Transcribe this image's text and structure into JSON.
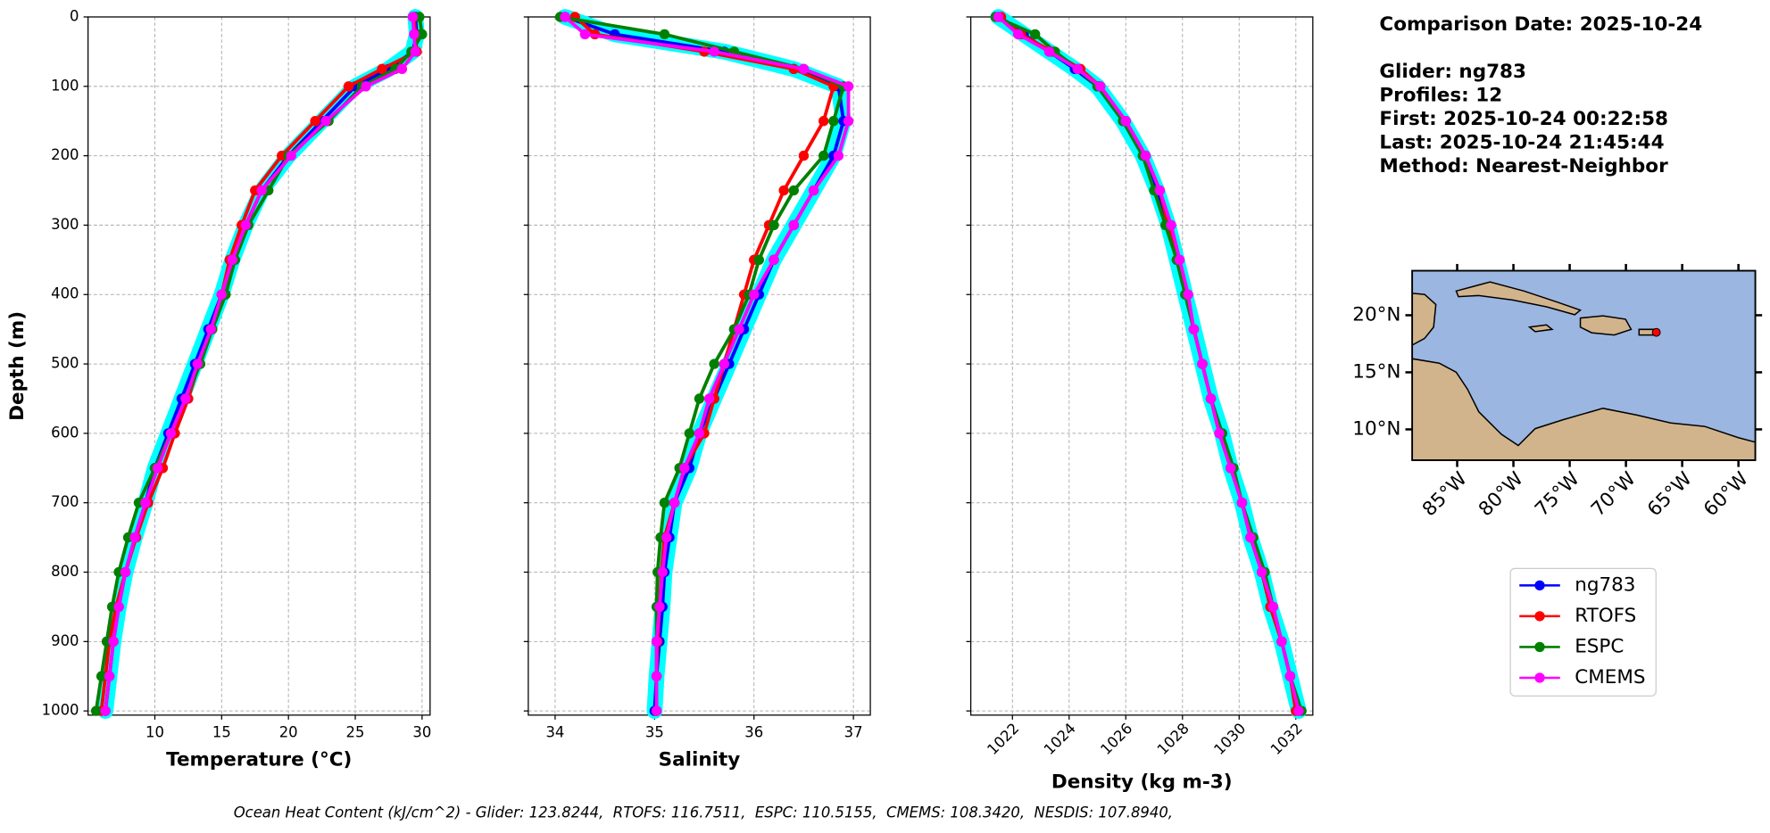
{
  "chart_data": [
    {
      "type": "line",
      "xlabel": "Temperature (°C)",
      "ylabel": "Depth (m)",
      "y_inverted": true,
      "ytick_labels": true,
      "grid": true,
      "xlim": [
        5.0,
        30.6
      ],
      "xticks": [
        10,
        15,
        20,
        25,
        30
      ],
      "ylim": [
        0,
        1006
      ],
      "yticks": [
        0,
        100,
        200,
        300,
        400,
        500,
        600,
        700,
        800,
        900,
        1000
      ],
      "depth": [
        0,
        25,
        50,
        75,
        100,
        150,
        200,
        250,
        300,
        350,
        400,
        450,
        500,
        550,
        600,
        650,
        700,
        750,
        800,
        850,
        900,
        950,
        1000
      ],
      "series": [
        {
          "name": "ng783",
          "color": "#0000ff",
          "halo_color": "#00ffff",
          "values": [
            29.5,
            29.6,
            29.3,
            27.5,
            25.0,
            22.5,
            20.0,
            18.0,
            16.8,
            15.8,
            15.0,
            14.0,
            13.0,
            12.0,
            11.0,
            10.0,
            9.3,
            8.5,
            7.8,
            7.3,
            6.9,
            6.6,
            6.3
          ]
        },
        {
          "name": "RTOFS",
          "color": "#ff0000",
          "values": [
            29.4,
            29.5,
            29.6,
            27.0,
            24.5,
            22.0,
            19.5,
            17.5,
            16.5,
            15.6,
            15.0,
            14.2,
            13.3,
            12.5,
            11.5,
            10.6,
            9.5,
            8.6,
            7.8,
            7.1,
            6.6,
            6.3,
            6.0
          ]
        },
        {
          "name": "ESPC",
          "color": "#008000",
          "values": [
            29.8,
            30.0,
            29.2,
            28.0,
            25.5,
            23.0,
            20.0,
            18.5,
            17.0,
            16.0,
            15.3,
            14.3,
            13.4,
            12.3,
            11.2,
            10.0,
            8.8,
            8.0,
            7.3,
            6.8,
            6.4,
            6.0,
            5.6
          ]
        },
        {
          "name": "CMEMS",
          "color": "#ff00ff",
          "values": [
            29.3,
            29.4,
            29.5,
            28.5,
            25.8,
            22.8,
            20.2,
            18.0,
            16.8,
            15.8,
            15.0,
            14.2,
            13.2,
            12.3,
            11.2,
            10.2,
            9.3,
            8.5,
            7.8,
            7.3,
            6.9,
            6.6,
            6.3
          ]
        }
      ]
    },
    {
      "type": "line",
      "xlabel": "Salinity",
      "y_inverted": true,
      "ytick_labels": false,
      "grid": true,
      "xlim": [
        33.73,
        37.17
      ],
      "xticks": [
        34,
        35,
        36,
        37
      ],
      "ylim": [
        0,
        1006
      ],
      "yticks": [
        0,
        100,
        200,
        300,
        400,
        500,
        600,
        700,
        800,
        900,
        1000
      ],
      "depth": [
        0,
        25,
        50,
        75,
        100,
        150,
        200,
        250,
        300,
        350,
        400,
        450,
        500,
        550,
        600,
        650,
        700,
        750,
        800,
        850,
        900,
        950,
        1000
      ],
      "series": [
        {
          "name": "ng783",
          "color": "#0000ff",
          "halo_color": "#00ffff",
          "values": [
            34.1,
            34.6,
            35.7,
            36.4,
            36.85,
            36.9,
            36.8,
            36.6,
            36.4,
            36.2,
            36.05,
            35.9,
            35.75,
            35.6,
            35.45,
            35.35,
            35.2,
            35.15,
            35.1,
            35.08,
            35.05,
            35.02,
            35.0
          ]
        },
        {
          "name": "RTOFS",
          "color": "#ff0000",
          "values": [
            34.2,
            34.4,
            35.5,
            36.4,
            36.8,
            36.7,
            36.5,
            36.3,
            36.15,
            36.0,
            35.9,
            35.8,
            35.7,
            35.6,
            35.5,
            35.3,
            35.2,
            35.1,
            35.07,
            35.05,
            35.03,
            35.02,
            35.02
          ]
        },
        {
          "name": "ESPC",
          "color": "#008000",
          "values": [
            34.05,
            35.1,
            35.8,
            36.5,
            36.9,
            36.8,
            36.7,
            36.4,
            36.2,
            36.05,
            35.95,
            35.8,
            35.6,
            35.45,
            35.35,
            35.25,
            35.1,
            35.06,
            35.03,
            35.02,
            35.02,
            35.02,
            35.02
          ]
        },
        {
          "name": "CMEMS",
          "color": "#ff00ff",
          "values": [
            34.1,
            34.3,
            35.6,
            36.5,
            36.95,
            36.95,
            36.85,
            36.6,
            36.4,
            36.2,
            36.0,
            35.85,
            35.7,
            35.55,
            35.45,
            35.3,
            35.2,
            35.12,
            35.08,
            35.05,
            35.02,
            35.02,
            35.02
          ]
        }
      ]
    },
    {
      "type": "line",
      "xlabel": "Density (kg m-3)",
      "y_inverted": true,
      "ytick_labels": false,
      "xtick_rotation": 45,
      "grid": true,
      "xlim": [
        1020.53,
        1032.6
      ],
      "xticks": [
        1022,
        1024,
        1026,
        1028,
        1030,
        1032
      ],
      "ylim": [
        0,
        1006
      ],
      "yticks": [
        0,
        100,
        200,
        300,
        400,
        500,
        600,
        700,
        800,
        900,
        1000
      ],
      "depth": [
        0,
        25,
        50,
        75,
        100,
        150,
        200,
        250,
        300,
        350,
        400,
        450,
        500,
        550,
        600,
        650,
        700,
        750,
        800,
        850,
        900,
        950,
        1000
      ],
      "series": [
        {
          "name": "ng783",
          "color": "#0000ff",
          "halo_color": "#00ffff",
          "values": [
            1021.5,
            1022.4,
            1023.3,
            1024.2,
            1025.0,
            1025.9,
            1026.6,
            1027.1,
            1027.5,
            1027.8,
            1028.1,
            1028.4,
            1028.7,
            1029.0,
            1029.4,
            1029.7,
            1030.1,
            1030.4,
            1030.8,
            1031.1,
            1031.5,
            1031.8,
            1032.1
          ]
        },
        {
          "name": "RTOFS",
          "color": "#ff0000",
          "values": [
            1021.6,
            1022.3,
            1023.4,
            1024.4,
            1025.1,
            1026.0,
            1026.7,
            1027.2,
            1027.5,
            1027.8,
            1028.1,
            1028.4,
            1028.7,
            1029.0,
            1029.3,
            1029.7,
            1030.1,
            1030.4,
            1030.8,
            1031.1,
            1031.5,
            1031.8,
            1032.0
          ]
        },
        {
          "name": "ESPC",
          "color": "#008000",
          "values": [
            1021.4,
            1022.8,
            1023.5,
            1024.3,
            1025.0,
            1025.9,
            1026.6,
            1027.0,
            1027.4,
            1027.8,
            1028.1,
            1028.4,
            1028.7,
            1029.0,
            1029.4,
            1029.8,
            1030.1,
            1030.5,
            1030.9,
            1031.2,
            1031.5,
            1031.8,
            1032.2
          ]
        },
        {
          "name": "CMEMS",
          "color": "#ff00ff",
          "values": [
            1021.5,
            1022.2,
            1023.3,
            1024.3,
            1025.1,
            1026.0,
            1026.7,
            1027.2,
            1027.6,
            1027.9,
            1028.2,
            1028.4,
            1028.7,
            1029.0,
            1029.3,
            1029.7,
            1030.1,
            1030.4,
            1030.8,
            1031.2,
            1031.5,
            1031.8,
            1032.1
          ]
        }
      ]
    },
    {
      "type": "map",
      "ocean_color": "#9bb6e0",
      "land_color": "#d2b48c",
      "xlim": [
        -89,
        -58.5
      ],
      "ylim": [
        7.3,
        23.9
      ],
      "xticks": [
        {
          "value": -85,
          "label": "85°W"
        },
        {
          "value": -80,
          "label": "80°W"
        },
        {
          "value": -75,
          "label": "75°W"
        },
        {
          "value": -70,
          "label": "70°W"
        },
        {
          "value": -65,
          "label": "65°W"
        },
        {
          "value": -60,
          "label": "60°W"
        }
      ],
      "yticks": [
        {
          "value": 10,
          "label": "10°N"
        },
        {
          "value": 15,
          "label": "15°N"
        },
        {
          "value": 20,
          "label": "20°N"
        }
      ],
      "marker": {
        "lon": -67.3,
        "lat": 18.5,
        "color": "#ff0000"
      }
    }
  ],
  "info_lines": [
    "Comparison Date: 2025-10-24",
    "Glider: ng783",
    "Profiles: 12",
    "First: 2025-10-24 00:22:58",
    "Last: 2025-10-24 21:45:44",
    "Method: Nearest-Neighbor"
  ],
  "footer": "Ocean Heat Content (kJ/cm^2) - Glider: 123.8244,  RTOFS: 116.7511,  ESPC: 110.5155,  CMEMS: 108.3420,  NESDIS: 107.8940,"
}
